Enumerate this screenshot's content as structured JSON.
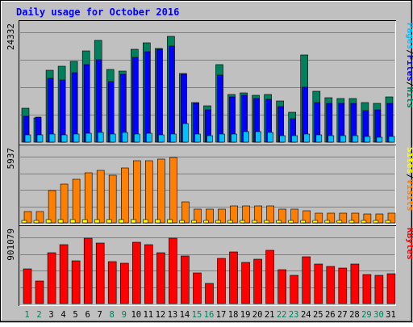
{
  "chart_data": {
    "type": "bar",
    "title": "Daily usage for October 2016",
    "categories": [
      "1",
      "2",
      "3",
      "4",
      "5",
      "6",
      "7",
      "8",
      "9",
      "10",
      "11",
      "12",
      "13",
      "14",
      "15",
      "16",
      "17",
      "18",
      "19",
      "20",
      "21",
      "22",
      "23",
      "24",
      "25",
      "26",
      "27",
      "28",
      "29",
      "30",
      "31"
    ],
    "weekend_days": [
      "1",
      "2",
      "8",
      "9",
      "15",
      "16",
      "22",
      "23",
      "29",
      "30"
    ],
    "panels": [
      {
        "id": "hits",
        "ymax": 24332,
        "ymax_label": "24332",
        "ylabel_parts": [
          "Pages",
          "/",
          "Files",
          "/",
          "Hits"
        ],
        "series": [
          {
            "name": "Hits",
            "color": "#00805c",
            "values": [
              7500,
              5400,
              15900,
              16800,
              17900,
              20200,
              22500,
              16100,
              15800,
              20600,
              22000,
              20800,
              23500,
              15200,
              8800,
              8000,
              17200,
              10500,
              11000,
              10300,
              10500,
              9200,
              6600,
              19400,
              11200,
              9900,
              9700,
              9700,
              8800,
              8600,
              10000
            ]
          },
          {
            "name": "Files",
            "color": "#0000ff",
            "values": [
              5700,
              5500,
              14200,
              13700,
              15400,
              17200,
              18300,
              13400,
              15100,
              18800,
              20100,
              20500,
              21300,
              15000,
              8500,
              7100,
              14900,
              10000,
              10400,
              9600,
              9500,
              7900,
              5200,
              12100,
              8800,
              8500,
              8500,
              8500,
              6900,
              7200,
              8500
            ]
          },
          {
            "name": "Pages",
            "color": "#00c0ff",
            "values": [
              1600,
              1600,
              1700,
              1600,
              1700,
              2000,
              2100,
              1800,
              2100,
              1700,
              1900,
              1600,
              1800,
              4100,
              1700,
              1500,
              1700,
              1700,
              2400,
              2300,
              2200,
              1500,
              1400,
              1800,
              1600,
              1500,
              1500,
              1500,
              1300,
              1100,
              1300
            ]
          }
        ]
      },
      {
        "id": "visits",
        "ymax": 5937,
        "ymax_label": "5937",
        "ylabel_parts": [
          "Sites",
          "/",
          "Visits"
        ],
        "series": [
          {
            "name": "Visits",
            "color": "#ff8000",
            "values": [
              1000,
              1000,
              2900,
              3500,
              3900,
              4500,
              4700,
              4300,
              4900,
              5600,
              5600,
              5700,
              5900,
              1900,
              1200,
              1200,
              1200,
              1500,
              1500,
              1500,
              1500,
              1200,
              1200,
              1100,
              900,
              900,
              900,
              900,
              800,
              800,
              900
            ]
          },
          {
            "name": "Sites",
            "color": "#ffff00",
            "values": [
              200,
              200,
              300,
              300,
              300,
              300,
              300,
              300,
              300,
              300,
              300,
              300,
              300,
              200,
              200,
              200,
              200,
              200,
              200,
              200,
              200,
              200,
              200,
              200,
              200,
              200,
              200,
              200,
              200,
              200,
              200
            ]
          }
        ]
      },
      {
        "id": "kbytes",
        "ymax": 901079,
        "ymax_label": "901079",
        "ylabel_parts": [
          "KBytes"
        ],
        "series": [
          {
            "name": "KBytes",
            "color": "#ff0000",
            "values": [
              470000,
              310000,
              690000,
              800000,
              580000,
              890000,
              820000,
              570000,
              550000,
              840000,
              800000,
              690000,
              890000,
              650000,
              420000,
              280000,
              620000,
              700000,
              560000,
              600000,
              730000,
              460000,
              390000,
              640000,
              540000,
              510000,
              480000,
              540000,
              400000,
              390000,
              410000
            ]
          }
        ]
      }
    ],
    "colors": {
      "background": "#c0c0c0",
      "title": "#0000ff",
      "grid": "#808080",
      "weekday_label": "#000000",
      "weekend_label": "#00805c"
    },
    "grid": true
  }
}
